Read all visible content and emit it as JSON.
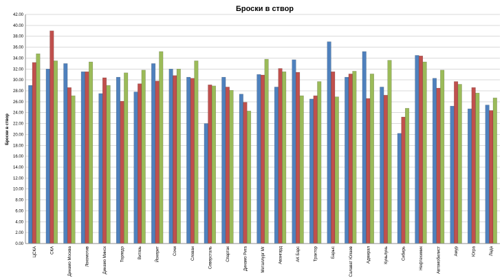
{
  "chart_data": {
    "type": "bar",
    "title": "Броски в створ",
    "xlabel": "",
    "ylabel": "Броски в створ",
    "ylim": [
      0,
      42
    ],
    "ytick_step": 2,
    "yticks": [
      "0.00",
      "2.00",
      "4.00",
      "6.00",
      "8.00",
      "10.00",
      "12.00",
      "14.00",
      "16.00",
      "18.00",
      "20.00",
      "22.00",
      "24.00",
      "26.00",
      "28.00",
      "30.00",
      "32.00",
      "34.00",
      "36.00",
      "38.00",
      "40.00",
      "42.00"
    ],
    "grid": true,
    "legend": "none",
    "categories": [
      "ЦСКА",
      "СКА",
      "Динамо Москва",
      "Локомотив",
      "Динамо Минск",
      "Торпедо",
      "Витязь",
      "Йокерит",
      "Сочи",
      "Слован",
      "Северсталь",
      "Спартак",
      "Динамо Рига",
      "Металлург Мг",
      "Авангард",
      "АК Барс",
      "Трактор",
      "Барыс",
      "Салават Юлаев",
      "Адмирал",
      "Куньлунь",
      "Сибирь",
      "Нефтехимик",
      "Автомобилист",
      "Амур",
      "Югра",
      "Лада"
    ],
    "series": [
      {
        "color": "#4f81bd",
        "values": [
          29.0,
          32.0,
          33.0,
          31.5,
          27.5,
          30.5,
          27.8,
          33.0,
          32.0,
          30.5,
          22.0,
          30.5,
          27.4,
          31.0,
          28.7,
          33.7,
          26.5,
          37.0,
          30.5,
          35.2,
          28.7,
          20.2,
          34.5,
          30.3,
          25.2,
          24.7,
          25.4
        ]
      },
      {
        "color": "#c0504d",
        "values": [
          33.2,
          39.0,
          28.6,
          31.5,
          30.4,
          26.1,
          29.3,
          29.8,
          30.8,
          30.3,
          29.1,
          28.7,
          25.9,
          30.9,
          32.1,
          31.4,
          27.1,
          31.5,
          31.1,
          26.6,
          27.2,
          23.2,
          34.4,
          28.5,
          29.7,
          28.6,
          24.4
        ]
      },
      {
        "color": "#9bbb59",
        "values": [
          34.8,
          33.5,
          27.1,
          33.3,
          29.0,
          31.3,
          31.8,
          35.2,
          32.0,
          33.5,
          28.9,
          28.1,
          24.3,
          33.8,
          31.5,
          27.1,
          29.7,
          26.9,
          31.6,
          31.1,
          33.6,
          24.8,
          33.3,
          31.8,
          29.2,
          27.6,
          26.7
        ]
      }
    ]
  }
}
